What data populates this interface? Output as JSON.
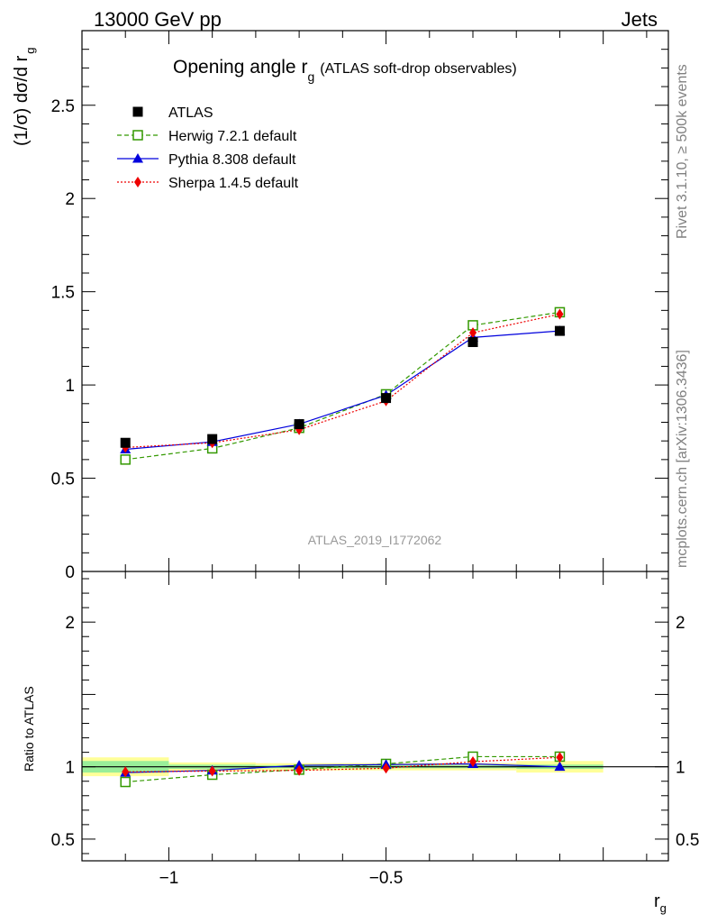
{
  "header": {
    "left": "13000 GeV pp",
    "right": "Jets"
  },
  "side": {
    "rivet": "Rivet 3.1.10, ≥ 500k events",
    "mcplots": "mcplots.cern.ch [arXiv:1306.3436]"
  },
  "watermark": "ATLAS_2019_I1772062",
  "title": {
    "main": "Opening angle r",
    "sub": "g",
    "extra": "(ATLAS soft-drop observables)"
  },
  "chart_data": [
    {
      "type": "line",
      "panel": "main",
      "ylabel": {
        "main": "(1/σ) dσ/d r",
        "sub": "g"
      },
      "ylim": [
        0,
        2.9
      ],
      "yticks": [
        0,
        0.5,
        1,
        1.5,
        2,
        2.5
      ],
      "ytick_labels": [
        "0",
        "0.5",
        "1",
        "1.5",
        "2",
        "2.5"
      ],
      "xlim": [
        -1.2,
        0.15
      ],
      "x": [
        -1.1,
        -0.9,
        -0.7,
        -0.5,
        -0.3,
        -0.1
      ],
      "legend_position": "top-left",
      "series": [
        {
          "name": "ATLAS",
          "label": "ATLAS",
          "values": [
            0.69,
            0.71,
            0.79,
            0.93,
            1.23,
            1.29
          ],
          "color": "#000000",
          "marker": "square-filled",
          "line": "none"
        },
        {
          "name": "Herwig",
          "label": "Herwig 7.2.1 default",
          "values": [
            0.6,
            0.66,
            0.77,
            0.95,
            1.32,
            1.39
          ],
          "color": "#339900",
          "marker": "square-open",
          "line": "dashed"
        },
        {
          "name": "Pythia",
          "label": "Pythia 8.308 default",
          "values": [
            0.655,
            0.695,
            0.79,
            0.945,
            1.255,
            1.29
          ],
          "color": "#0000dd",
          "marker": "triangle",
          "line": "solid"
        },
        {
          "name": "Sherpa",
          "label": "Sherpa 1.4.5 default",
          "values": [
            0.665,
            0.69,
            0.76,
            0.915,
            1.28,
            1.38
          ],
          "color": "#ee0000",
          "marker": "diamond",
          "line": "dotted"
        }
      ]
    },
    {
      "type": "line",
      "panel": "ratio",
      "ylabel": "Ratio to ATLAS",
      "xlabel": {
        "main": "r",
        "sub": "g"
      },
      "ylim": [
        0.35,
        2.35
      ],
      "yticks": [
        0.5,
        1,
        2
      ],
      "ytick_labels": [
        "0.5",
        "1",
        "2"
      ],
      "xlim": [
        -1.2,
        0.15
      ],
      "xticks": [
        -1,
        -0.5
      ],
      "xtick_labels": [
        "−1",
        "−0.5"
      ],
      "x": [
        -1.1,
        -0.9,
        -0.7,
        -0.5,
        -0.3,
        -0.1
      ],
      "bands": [
        {
          "x0": -1.2,
          "x1": -1.0,
          "stat": [
            0.96,
            1.04
          ],
          "total": [
            0.935,
            1.065
          ]
        },
        {
          "x0": -1.0,
          "x1": -0.8,
          "stat": [
            0.985,
            1.015
          ],
          "total": [
            0.97,
            1.03
          ]
        },
        {
          "x0": -0.8,
          "x1": -0.6,
          "stat": [
            0.99,
            1.01
          ],
          "total": [
            0.975,
            1.025
          ]
        },
        {
          "x0": -0.6,
          "x1": -0.4,
          "stat": [
            0.99,
            1.01
          ],
          "total": [
            0.975,
            1.025
          ]
        },
        {
          "x0": -0.4,
          "x1": -0.2,
          "stat": [
            0.99,
            1.01
          ],
          "total": [
            0.975,
            1.025
          ]
        },
        {
          "x0": -0.2,
          "x1": 0.0,
          "stat": [
            0.985,
            1.015
          ],
          "total": [
            0.96,
            1.04
          ]
        }
      ],
      "series": [
        {
          "name": "Herwig",
          "values": [
            0.895,
            0.945,
            0.98,
            1.02,
            1.07,
            1.07
          ],
          "color": "#339900",
          "marker": "square-open",
          "line": "dashed"
        },
        {
          "name": "Pythia",
          "values": [
            0.96,
            0.975,
            1.01,
            1.015,
            1.02,
            1.0
          ],
          "color": "#0000dd",
          "marker": "triangle",
          "line": "solid"
        },
        {
          "name": "Sherpa",
          "values": [
            0.965,
            0.97,
            0.975,
            0.99,
            1.035,
            1.065
          ],
          "color": "#ee0000",
          "marker": "diamond",
          "line": "dotted"
        }
      ]
    }
  ]
}
